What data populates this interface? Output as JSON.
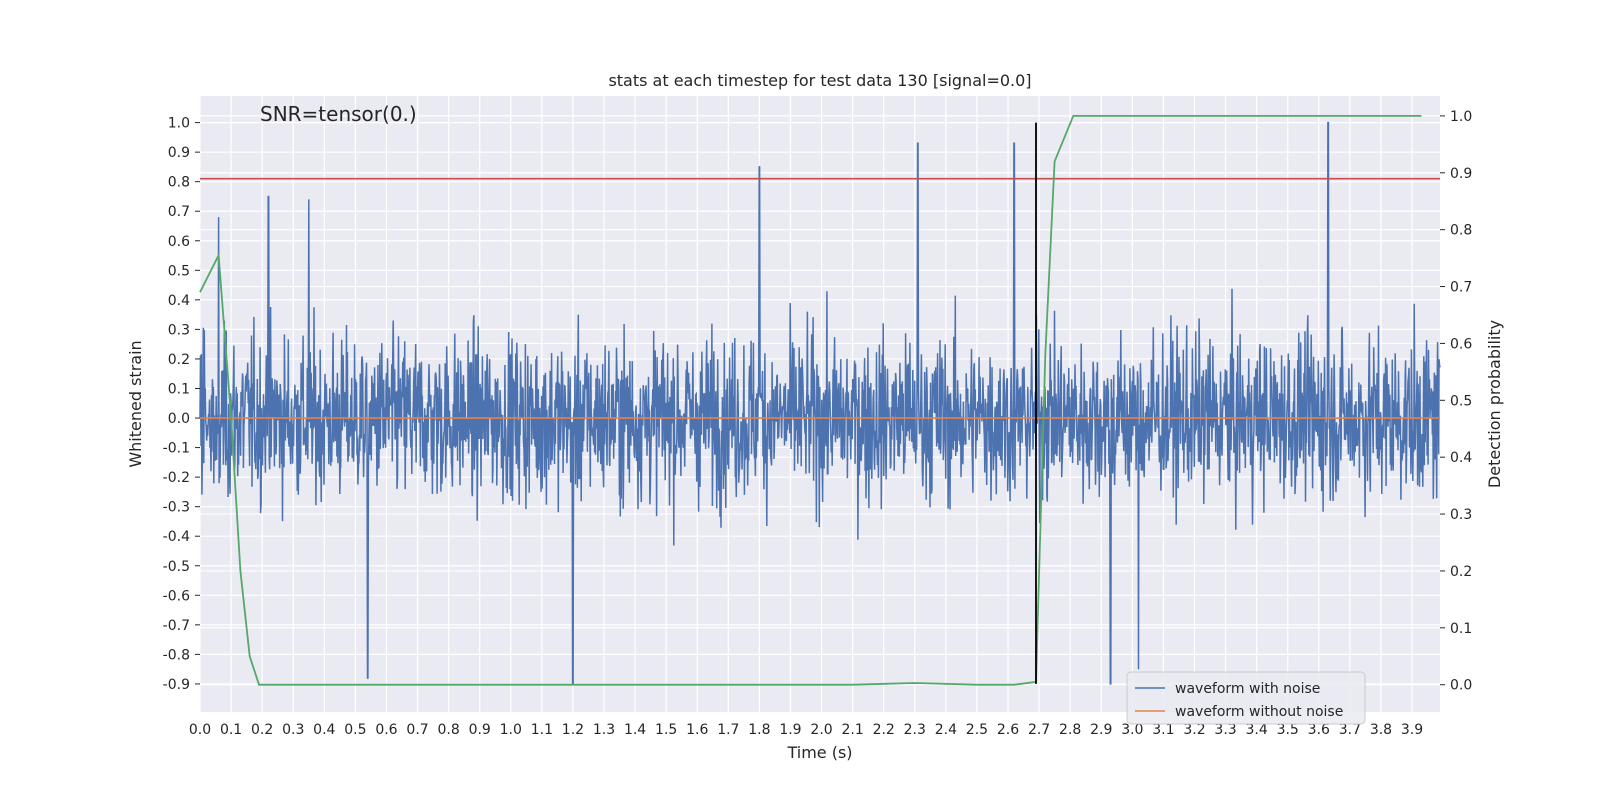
{
  "chart_data": {
    "type": "line",
    "title": "stats at each timestep for test data 130 [signal=0.0]",
    "xlabel": "Time (s)",
    "ylabel": "Whitened strain",
    "ylabel_right": "Detection probability",
    "xlim": [
      0.0,
      3.99
    ],
    "ylim": [
      -0.995,
      1.09
    ],
    "ylim_right": [
      -0.048,
      1.035
    ],
    "x_ticks": [
      "0.0",
      "0.1",
      "0.2",
      "0.3",
      "0.4",
      "0.5",
      "0.6",
      "0.7",
      "0.8",
      "0.9",
      "1.0",
      "1.1",
      "1.2",
      "1.3",
      "1.4",
      "1.5",
      "1.6",
      "1.7",
      "1.8",
      "1.9",
      "2.0",
      "2.1",
      "2.2",
      "2.3",
      "2.4",
      "2.5",
      "2.6",
      "2.7",
      "2.8",
      "2.9",
      "3.0",
      "3.1",
      "3.2",
      "3.3",
      "3.4",
      "3.5",
      "3.6",
      "3.7",
      "3.8",
      "3.9"
    ],
    "y_ticks": [
      "-0.9",
      "-0.8",
      "-0.7",
      "-0.6",
      "-0.5",
      "-0.4",
      "-0.3",
      "-0.2",
      "-0.1",
      "0.0",
      "0.1",
      "0.2",
      "0.3",
      "0.4",
      "0.5",
      "0.6",
      "0.7",
      "0.8",
      "0.9",
      "1.0"
    ],
    "y_ticks_right": [
      "0.0",
      "0.1",
      "0.2",
      "0.3",
      "0.4",
      "0.5",
      "0.6",
      "0.7",
      "0.8",
      "0.9",
      "1.0"
    ],
    "annotation": "SNR=tensor(0.)",
    "threshold_line": {
      "y": 0.81,
      "color": "#c44e52"
    },
    "marker_vline": {
      "x": 2.69,
      "y_range": [
        -0.9,
        1.0
      ],
      "color": "#000000"
    },
    "noise_envelope": {
      "typical_amplitude": 0.42,
      "max_peak": 1.0,
      "min_peak": -0.9
    },
    "series": [
      {
        "name": "waveform with noise",
        "color": "#4c72b0",
        "axis": "left",
        "description_peaks": [
          {
            "x": 0.06,
            "y": 0.68
          },
          {
            "x": 0.22,
            "y": 0.75
          },
          {
            "x": 0.35,
            "y": 0.74
          },
          {
            "x": 1.8,
            "y": 0.85
          },
          {
            "x": 2.31,
            "y": 0.93
          },
          {
            "x": 2.62,
            "y": 0.93
          },
          {
            "x": 3.63,
            "y": 1.0
          },
          {
            "x": 0.54,
            "y": -0.88
          },
          {
            "x": 1.2,
            "y": -0.91
          },
          {
            "x": 2.93,
            "y": -0.9
          },
          {
            "x": 3.02,
            "y": -0.85
          }
        ]
      },
      {
        "name": "waveform without noise",
        "color": "#dd8452",
        "axis": "left",
        "x": [
          0.0,
          3.99
        ],
        "y": [
          0.0,
          0.0
        ]
      },
      {
        "color": "#55a868",
        "axis": "right",
        "x": [
          0.0,
          0.06,
          0.1,
          0.13,
          0.16,
          0.19,
          0.25,
          0.5,
          1.0,
          1.5,
          2.0,
          2.1,
          2.3,
          2.5,
          2.62,
          2.69,
          2.72,
          2.75,
          2.81,
          3.0,
          3.5,
          3.93
        ],
        "y": [
          0.69,
          0.755,
          0.47,
          0.2,
          0.05,
          0.0,
          0.0,
          0.0,
          0.0,
          0.0,
          0.0,
          0.0,
          0.003,
          0.0,
          0.0,
          0.005,
          0.58,
          0.92,
          1.0,
          1.0,
          1.0,
          1.0
        ]
      }
    ],
    "legend": {
      "placement": "lower-right",
      "entries": [
        "waveform with noise",
        "waveform without noise"
      ]
    },
    "grid": true,
    "background": "#eaeaf2"
  }
}
